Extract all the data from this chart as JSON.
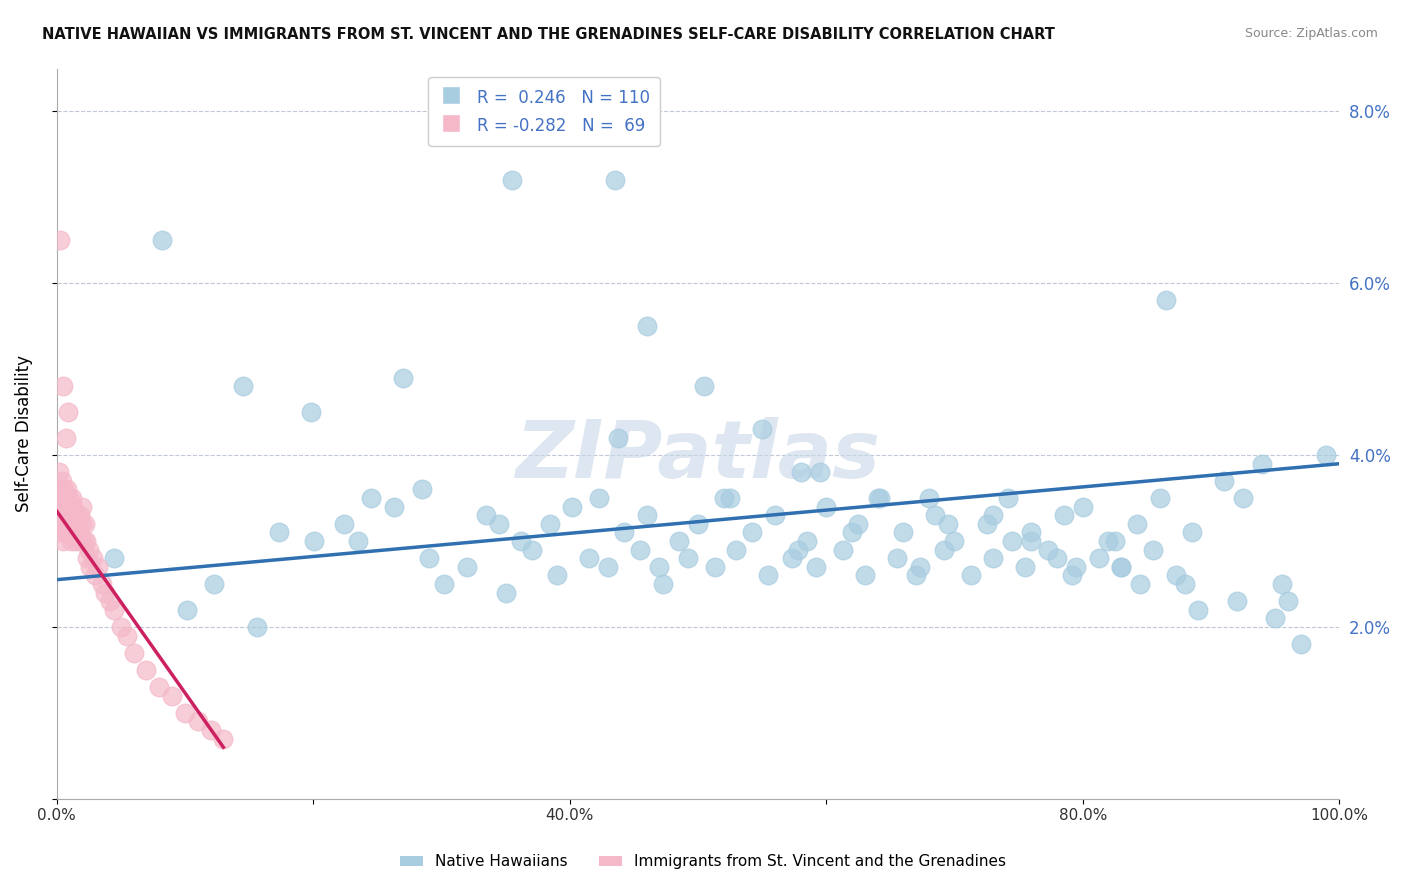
{
  "title": "NATIVE HAWAIIAN VS IMMIGRANTS FROM ST. VINCENT AND THE GRENADINES SELF-CARE DISABILITY CORRELATION CHART",
  "source": "Source: ZipAtlas.com",
  "ylabel": "Self-Care Disability",
  "xlim": [
    0,
    100
  ],
  "ylim": [
    0,
    8.5
  ],
  "yticks": [
    0,
    2,
    4,
    6,
    8
  ],
  "ytick_labels_right": [
    "",
    "2.0%",
    "4.0%",
    "6.0%",
    "8.0%"
  ],
  "xticks": [
    0,
    20,
    40,
    60,
    80,
    100
  ],
  "xtick_labels": [
    "0.0%",
    "",
    "40.0%",
    "",
    "80.0%",
    "100.0%"
  ],
  "legend_r1": "R =  0.246",
  "legend_n1": "N = 110",
  "legend_r2": "R = -0.282",
  "legend_n2": "N =  69",
  "blue_color": "#a8cce0",
  "pink_color": "#f4b8c8",
  "blue_line_color": "#3070b0",
  "pink_line_color": "#cc2060",
  "watermark": "ZIPatlas",
  "blue_scatter_x": [
    4.5,
    8.2,
    14.5,
    17.3,
    20.1,
    22.4,
    24.5,
    26.3,
    28.5,
    30.2,
    32.0,
    33.5,
    35.0,
    36.2,
    37.1,
    38.5,
    39.0,
    40.2,
    41.5,
    42.3,
    43.0,
    44.2,
    45.5,
    46.0,
    47.3,
    48.5,
    49.2,
    50.0,
    51.3,
    52.5,
    53.0,
    54.2,
    55.5,
    56.0,
    57.3,
    58.5,
    59.2,
    60.0,
    61.3,
    62.5,
    63.0,
    64.2,
    65.5,
    66.0,
    67.3,
    68.5,
    69.2,
    70.0,
    71.3,
    72.5,
    73.0,
    74.2,
    75.5,
    76.0,
    77.3,
    78.5,
    79.2,
    80.0,
    81.3,
    82.5,
    83.0,
    84.2,
    85.5,
    86.0,
    87.3,
    88.5,
    10.2,
    12.3,
    15.6,
    19.8,
    23.5,
    29.0,
    34.5,
    43.8,
    47.0,
    52.0,
    57.8,
    62.0,
    67.0,
    73.0,
    78.0,
    82.0,
    86.5,
    91.0,
    92.5,
    94.0,
    95.5,
    96.0,
    43.5,
    50.5,
    55.0,
    59.5,
    64.0,
    69.5,
    74.5,
    79.5,
    84.5,
    89.0,
    46.0,
    58.0,
    68.0,
    76.0,
    83.0,
    88.0,
    92.0,
    95.0,
    97.0,
    99.0,
    35.5,
    27.0
  ],
  "blue_scatter_y": [
    2.8,
    6.5,
    4.8,
    3.1,
    3.0,
    3.2,
    3.5,
    3.4,
    3.6,
    2.5,
    2.7,
    3.3,
    2.4,
    3.0,
    2.9,
    3.2,
    2.6,
    3.4,
    2.8,
    3.5,
    2.7,
    3.1,
    2.9,
    3.3,
    2.5,
    3.0,
    2.8,
    3.2,
    2.7,
    3.5,
    2.9,
    3.1,
    2.6,
    3.3,
    2.8,
    3.0,
    2.7,
    3.4,
    2.9,
    3.2,
    2.6,
    3.5,
    2.8,
    3.1,
    2.7,
    3.3,
    2.9,
    3.0,
    2.6,
    3.2,
    2.8,
    3.5,
    2.7,
    3.1,
    2.9,
    3.3,
    2.6,
    3.4,
    2.8,
    3.0,
    2.7,
    3.2,
    2.9,
    3.5,
    2.6,
    3.1,
    2.2,
    2.5,
    2.0,
    4.5,
    3.0,
    2.8,
    3.2,
    4.2,
    2.7,
    3.5,
    2.9,
    3.1,
    2.6,
    3.3,
    2.8,
    3.0,
    5.8,
    3.7,
    3.5,
    3.9,
    2.5,
    2.3,
    7.2,
    4.8,
    4.3,
    3.8,
    3.5,
    3.2,
    3.0,
    2.7,
    2.5,
    2.2,
    5.5,
    3.8,
    3.5,
    3.0,
    2.7,
    2.5,
    2.3,
    2.1,
    1.8,
    4.0,
    7.2,
    4.9
  ],
  "pink_scatter_x": [
    0.1,
    0.15,
    0.2,
    0.2,
    0.25,
    0.3,
    0.3,
    0.35,
    0.4,
    0.4,
    0.45,
    0.5,
    0.5,
    0.55,
    0.6,
    0.6,
    0.65,
    0.7,
    0.7,
    0.75,
    0.8,
    0.8,
    0.85,
    0.9,
    0.95,
    1.0,
    1.0,
    1.1,
    1.1,
    1.2,
    1.2,
    1.3,
    1.3,
    1.4,
    1.5,
    1.5,
    1.6,
    1.7,
    1.8,
    1.9,
    2.0,
    2.0,
    2.1,
    2.2,
    2.3,
    2.4,
    2.5,
    2.6,
    2.8,
    3.0,
    3.2,
    3.5,
    3.8,
    4.2,
    4.5,
    5.0,
    5.5,
    6.0,
    7.0,
    8.0,
    9.0,
    10.0,
    11.0,
    12.0,
    13.0,
    0.3,
    0.5,
    0.7,
    0.9
  ],
  "pink_scatter_y": [
    3.5,
    3.2,
    3.8,
    3.6,
    3.3,
    3.5,
    3.1,
    3.4,
    3.2,
    3.7,
    3.4,
    3.0,
    3.5,
    3.3,
    3.6,
    3.2,
    3.4,
    3.1,
    3.5,
    3.3,
    3.6,
    3.2,
    3.4,
    3.1,
    3.3,
    3.5,
    3.2,
    3.4,
    3.0,
    3.3,
    3.5,
    3.2,
    3.4,
    3.1,
    3.3,
    3.0,
    3.2,
    3.1,
    3.3,
    3.0,
    3.2,
    3.4,
    3.0,
    3.2,
    3.0,
    2.8,
    2.9,
    2.7,
    2.8,
    2.6,
    2.7,
    2.5,
    2.4,
    2.3,
    2.2,
    2.0,
    1.9,
    1.7,
    1.5,
    1.3,
    1.2,
    1.0,
    0.9,
    0.8,
    0.7,
    6.5,
    4.8,
    4.2,
    4.5
  ],
  "blue_line_x": [
    0,
    100
  ],
  "blue_line_y": [
    2.55,
    3.9
  ],
  "pink_line_x": [
    0,
    13
  ],
  "pink_line_y": [
    3.35,
    0.6
  ]
}
